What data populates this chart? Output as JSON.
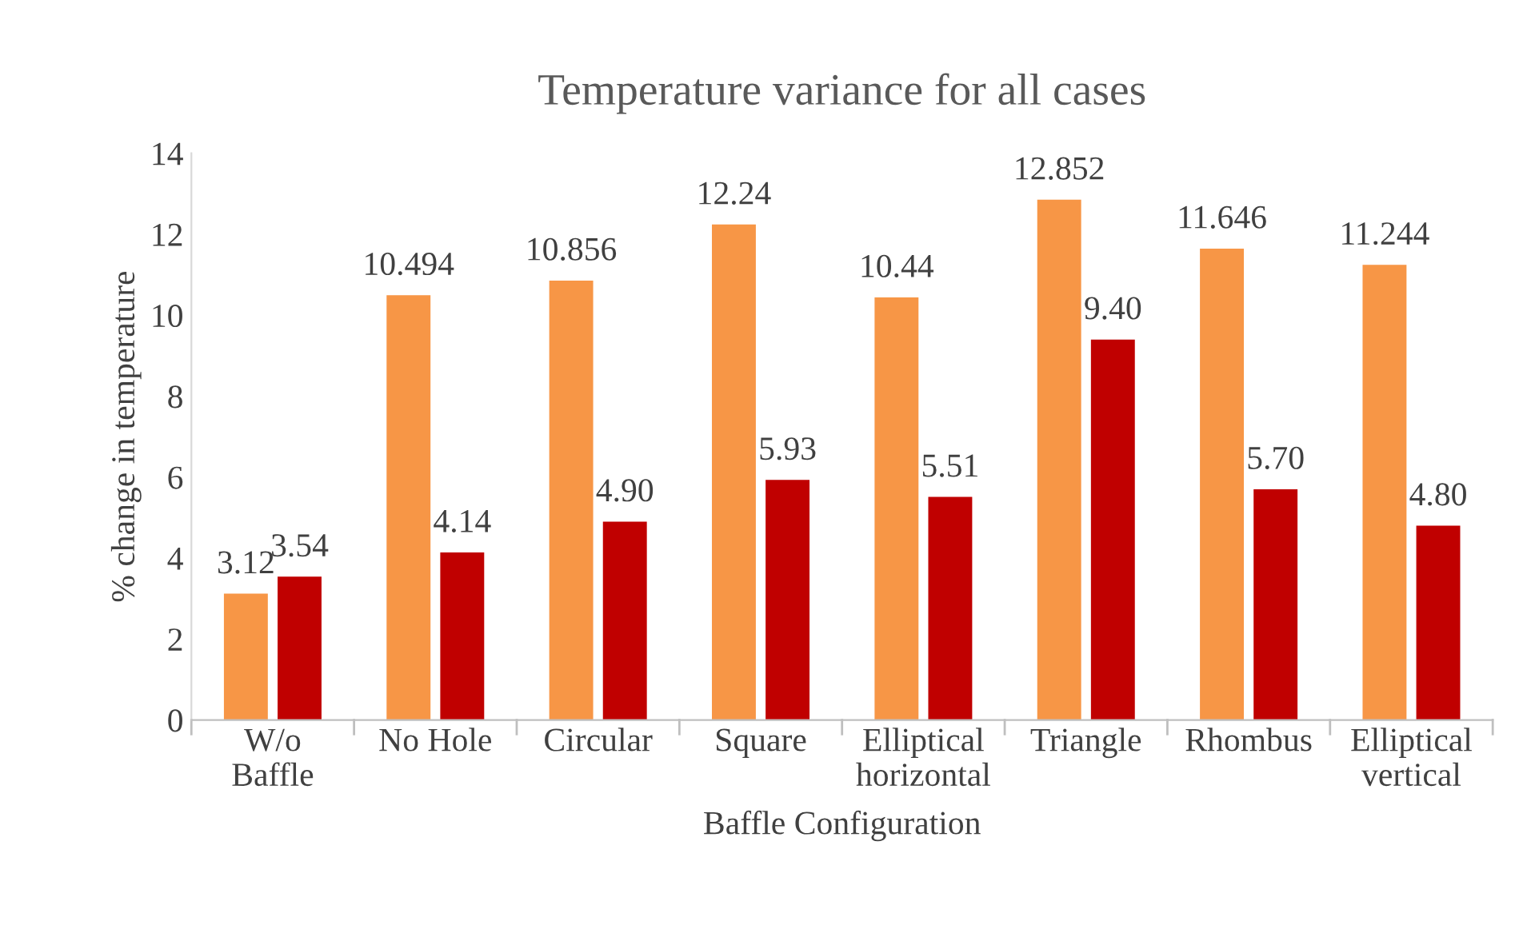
{
  "chart_data": {
    "type": "bar",
    "title": "Temperature variance for all cases",
    "xlabel": "Baffle Configuration",
    "ylabel": "% change in temperature",
    "categories": [
      "W/o\nBaffle",
      "No Hole",
      "Circular",
      "Square",
      "Elliptical\nhorizontal",
      "Triangle",
      "Rhombus",
      "Elliptical\nvertical"
    ],
    "series": [
      {
        "color": "#f79646",
        "values": [
          3.12,
          10.494,
          10.856,
          12.24,
          10.44,
          12.852,
          11.646,
          11.244
        ],
        "value_labels": [
          "3.12",
          "10.494",
          "10.856",
          "12.24",
          "10.44",
          "12.852",
          "11.646",
          "11.244"
        ]
      },
      {
        "color": "#c00000",
        "values": [
          3.54,
          4.14,
          4.9,
          5.93,
          5.51,
          9.4,
          5.7,
          4.8
        ],
        "value_labels": [
          "3.54",
          "4.14",
          "4.90",
          "5.93",
          "5.51",
          "9.40",
          "5.70",
          "4.80"
        ]
      }
    ],
    "ylim": [
      0,
      14
    ],
    "yticks": [
      0,
      2,
      4,
      6,
      8,
      10,
      12,
      14
    ],
    "grid": false,
    "legend": false
  }
}
